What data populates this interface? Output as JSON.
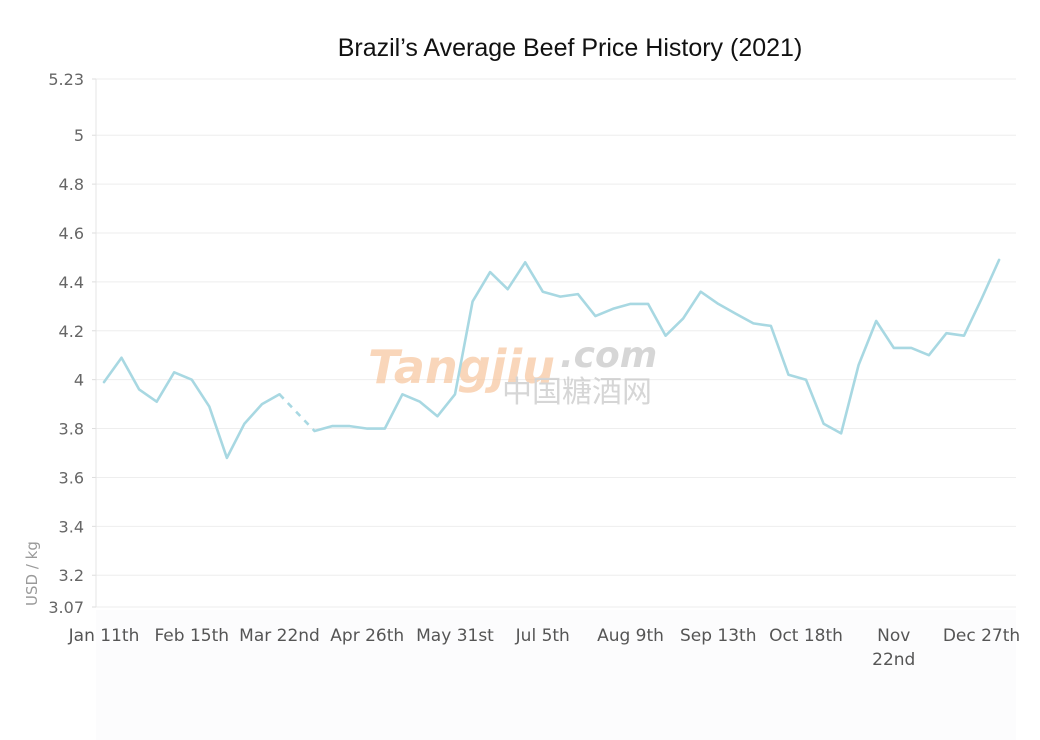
{
  "chart_data": {
    "type": "line",
    "title": "Brazil’s Average Beef Price History (2021)",
    "xlabel": "",
    "ylabel": "USD / kg",
    "ylim": [
      3.07,
      5.23
    ],
    "y_ticks": [
      "5.23",
      "5",
      "4.8",
      "4.6",
      "4.4",
      "4.2",
      "4",
      "3.8",
      "3.6",
      "3.4",
      "3.2",
      "3.07"
    ],
    "x_ticks": [
      {
        "label": "Jan 11th",
        "week": 0
      },
      {
        "label": "Feb 15th",
        "week": 5
      },
      {
        "label": "Mar 22nd",
        "week": 10
      },
      {
        "label": "Apr 26th",
        "week": 15
      },
      {
        "label": "May 31st",
        "week": 20
      },
      {
        "label": "Jul 5th",
        "week": 25
      },
      {
        "label": "Aug 9th",
        "week": 30
      },
      {
        "label": "Sep 13th",
        "week": 35
      },
      {
        "label": "Oct 18th",
        "week": 40
      },
      {
        "label": [
          "Nov",
          "22nd"
        ],
        "week": 45
      },
      {
        "label": "Dec 27th",
        "week": 50
      }
    ],
    "grid": true,
    "legend": "none",
    "line_color": "#a8d8e2",
    "missing_segment": [
      10,
      12
    ],
    "series": [
      {
        "values": [
          3.99,
          4.09,
          3.96,
          3.91,
          4.03,
          4.0,
          3.89,
          3.68,
          3.82,
          3.9,
          3.94,
          null,
          3.79,
          3.81,
          3.81,
          3.8,
          3.8,
          3.94,
          3.91,
          3.85,
          3.94,
          4.32,
          4.44,
          4.37,
          4.48,
          4.36,
          4.34,
          4.35,
          4.26,
          4.29,
          4.31,
          4.31,
          4.18,
          4.25,
          4.36,
          4.31,
          4.27,
          4.23,
          4.22,
          4.02,
          4.0,
          3.82,
          3.78,
          4.06,
          4.24,
          4.13,
          4.13,
          4.1,
          4.19,
          4.18,
          4.33,
          4.49
        ]
      }
    ]
  },
  "watermark": {
    "latin": "Tangjiu",
    "domain": ".com",
    "cjk": "中国糖酒网",
    "colors": {
      "orange": "#f7c9a3",
      "gray": "#c9c9c9"
    }
  }
}
